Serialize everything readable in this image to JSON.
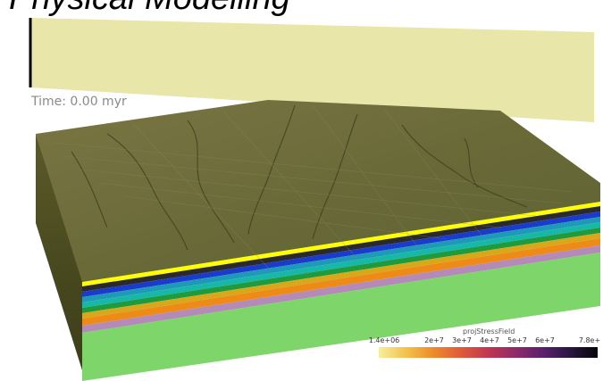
{
  "header": {
    "title": "Physical Modelling"
  },
  "viewer": {
    "time_label": "Time: 0.00 myr"
  },
  "colorbar": {
    "field_name": "projStressField",
    "ticks": [
      "1.4e+06",
      "2e+7",
      "3e+7",
      "4e+7",
      "5e+7",
      "6e+7",
      "7.8e+"
    ],
    "colors": [
      "#f7ef9a",
      "#f2c24c",
      "#ee8a2b",
      "#e05a3a",
      "#c03650",
      "#8e2a6a",
      "#5a1f6e",
      "#2a1540",
      "#050505"
    ]
  },
  "layers": {
    "colors": [
      "#ffff00",
      "#2a2a2a",
      "#1a3bcc",
      "#1e9ab8",
      "#17b8a8",
      "#1f9a3c",
      "#d8a81a",
      "#ee8a16",
      "#b38ab8",
      "#7ed66b"
    ]
  },
  "colors": {
    "top_surface": "#6b6b3a",
    "plane": "#e8e6a8"
  }
}
